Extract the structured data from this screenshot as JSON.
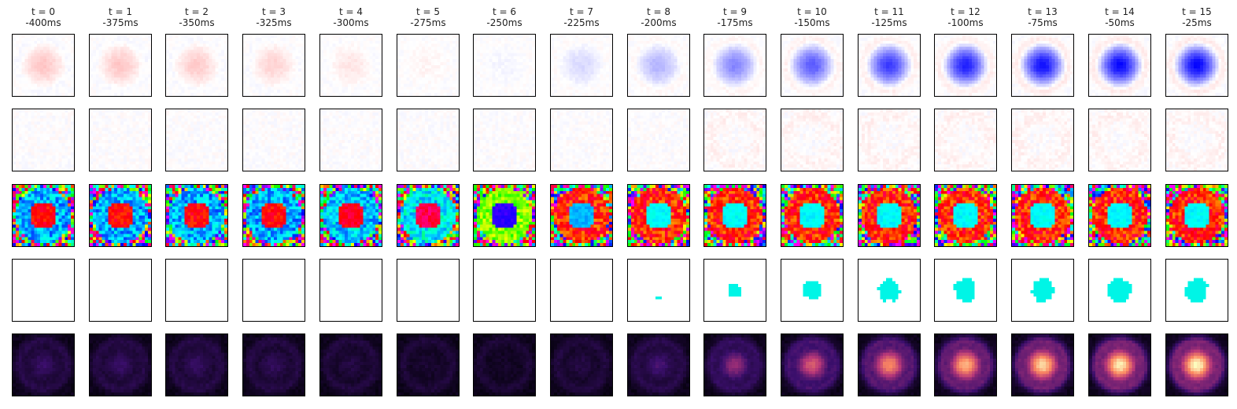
{
  "chart_data": {
    "type": "heatmap",
    "frames": [
      {
        "t_label": "t = 0",
        "ms_label": "-400ms"
      },
      {
        "t_label": "t = 1",
        "ms_label": "-375ms"
      },
      {
        "t_label": "t = 2",
        "ms_label": "-350ms"
      },
      {
        "t_label": "t = 3",
        "ms_label": "-325ms"
      },
      {
        "t_label": "t = 4",
        "ms_label": "-300ms"
      },
      {
        "t_label": "t = 5",
        "ms_label": "-275ms"
      },
      {
        "t_label": "t = 6",
        "ms_label": "-250ms"
      },
      {
        "t_label": "t = 7",
        "ms_label": "-225ms"
      },
      {
        "t_label": "t = 8",
        "ms_label": "-200ms"
      },
      {
        "t_label": "t = 9",
        "ms_label": "-175ms"
      },
      {
        "t_label": "t = 10",
        "ms_label": "-150ms"
      },
      {
        "t_label": "t = 11",
        "ms_label": "-125ms"
      },
      {
        "t_label": "t = 12",
        "ms_label": "-100ms"
      },
      {
        "t_label": "t = 13",
        "ms_label": "-75ms"
      },
      {
        "t_label": "t = 14",
        "ms_label": "-50ms"
      },
      {
        "t_label": "t = 15",
        "ms_label": "-25ms"
      }
    ],
    "rows": [
      {
        "kind": "center_surround",
        "colormap": "bwr",
        "center_strength": [
          0.22,
          0.22,
          0.2,
          0.17,
          0.1,
          0.04,
          -0.04,
          -0.15,
          -0.3,
          -0.48,
          -0.65,
          -0.78,
          -0.88,
          -0.94,
          -0.97,
          -0.98
        ]
      },
      {
        "kind": "noise",
        "colormap": "bwr",
        "center_strength": [
          0.04,
          0.04,
          0.04,
          0.04,
          0.04,
          0.04,
          0.04,
          0.04,
          0.04,
          0.05,
          0.05,
          0.05,
          0.05,
          0.05,
          0.05,
          0.05
        ]
      },
      {
        "kind": "phase",
        "colormap": "hsv",
        "center_hue": [
          0.0,
          0.0,
          0.0,
          0.0,
          0.98,
          0.95,
          0.7,
          0.55,
          0.5,
          0.5,
          0.5,
          0.5,
          0.5,
          0.5,
          0.5,
          0.5
        ]
      },
      {
        "kind": "mask",
        "colormap": "cyan",
        "center_radius": [
          0,
          0,
          0,
          0,
          0,
          0,
          0,
          0,
          0.5,
          2.2,
          3.2,
          3.6,
          3.8,
          3.8,
          3.9,
          3.9
        ]
      },
      {
        "kind": "magnitude",
        "colormap": "magma",
        "center_strength": [
          0.18,
          0.18,
          0.17,
          0.15,
          0.1,
          0.06,
          0.04,
          0.1,
          0.22,
          0.38,
          0.55,
          0.7,
          0.8,
          0.88,
          0.92,
          0.95
        ]
      }
    ]
  }
}
